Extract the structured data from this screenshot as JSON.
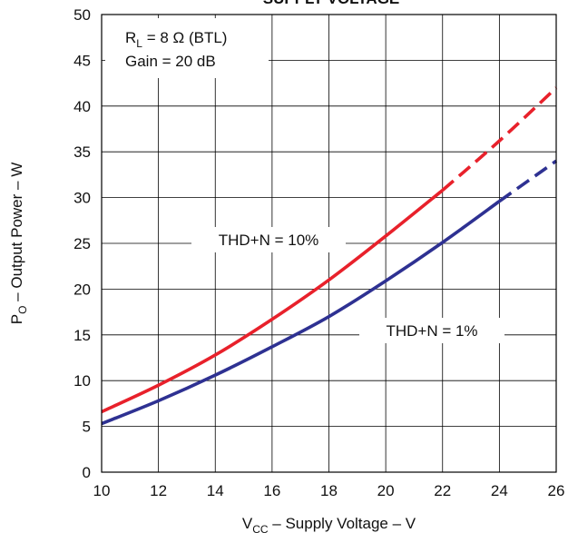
{
  "chart_data": {
    "type": "line",
    "title": "SUPPLY VOLTAGE",
    "xlabel_main": "V",
    "xlabel_sub": "CC",
    "xlabel_rest": " – Supply Voltage – V",
    "ylabel_main": "P",
    "ylabel_sub": "O",
    "ylabel_rest": " – Output Power – W",
    "xlim": [
      10,
      26
    ],
    "ylim": [
      0,
      50
    ],
    "xticks": [
      10,
      12,
      14,
      16,
      18,
      20,
      22,
      24,
      26
    ],
    "yticks": [
      0,
      5,
      10,
      15,
      20,
      25,
      30,
      35,
      40,
      45,
      50
    ],
    "grid": true,
    "conditions": {
      "rl_main": "R",
      "rl_sub": "L",
      "rl_rest": " = 8 Ω (BTL)",
      "gain": "Gain = 20 dB"
    },
    "series": [
      {
        "label": "THD+N = 10%",
        "color": "#e8212b",
        "x": [
          10,
          12,
          14,
          16,
          18,
          20,
          22,
          24,
          26
        ],
        "y": [
          6.6,
          9.5,
          12.8,
          16.7,
          21.0,
          25.8,
          30.8,
          36.2,
          42.0
        ],
        "dashed_from_x": 22
      },
      {
        "label": "THD+N = 1%",
        "color": "#2e3192",
        "x": [
          10,
          12,
          14,
          16,
          18,
          20,
          22,
          24,
          26
        ],
        "y": [
          5.3,
          7.8,
          10.6,
          13.7,
          17.0,
          20.9,
          25.1,
          29.6,
          34.0
        ],
        "dashed_from_x": 24
      }
    ]
  }
}
